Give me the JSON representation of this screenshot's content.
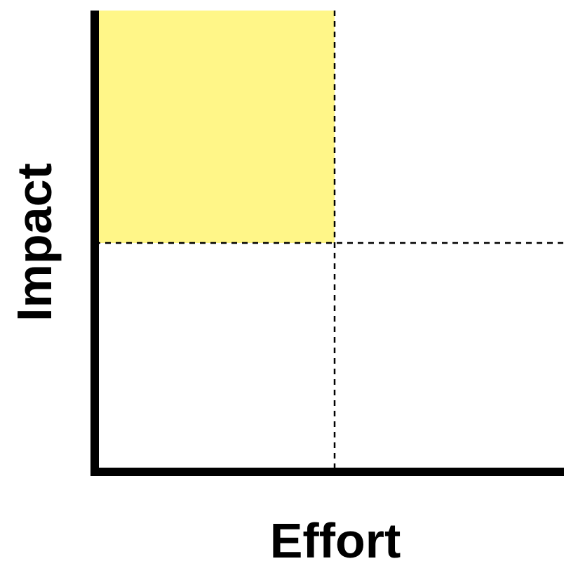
{
  "diagram": {
    "type": "quadrant-matrix",
    "x_axis_label": "Effort",
    "y_axis_label": "Impact",
    "quadrants": [
      {
        "id": "low-effort-high-impact",
        "position": "top-left",
        "highlighted": true
      },
      {
        "id": "high-effort-high-impact",
        "position": "top-right",
        "highlighted": false
      },
      {
        "id": "low-effort-low-impact",
        "position": "bottom-left",
        "highlighted": false
      },
      {
        "id": "high-effort-low-impact",
        "position": "bottom-right",
        "highlighted": false
      }
    ],
    "divider_style": "dashed"
  },
  "colors": {
    "highlight": "#fff688",
    "axis": "#000000",
    "background": "#ffffff"
  }
}
